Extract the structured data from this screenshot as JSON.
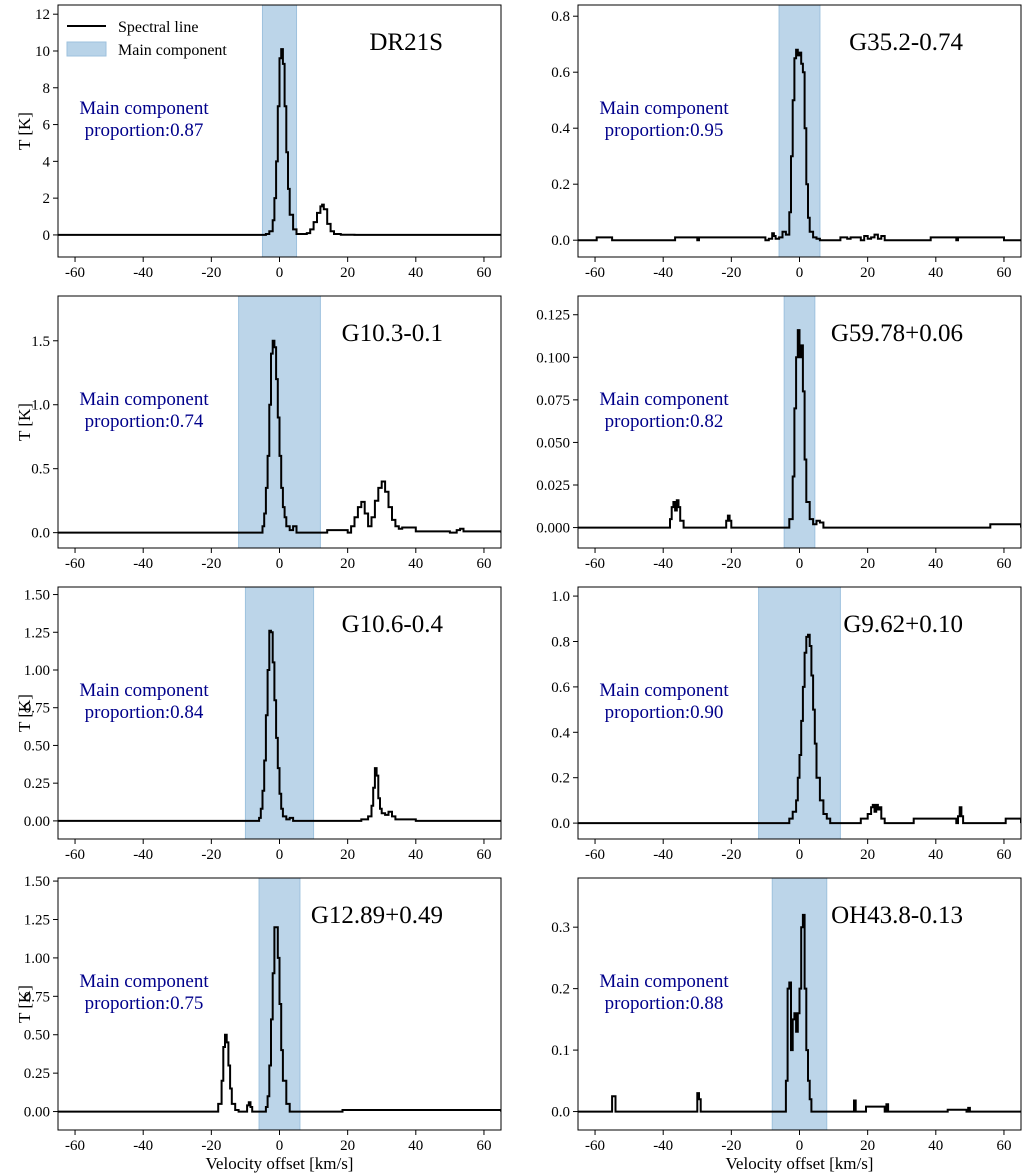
{
  "legend": {
    "line_label": "Spectral line",
    "band_label": "Main component",
    "line_color": "#000000",
    "band_color": "#b8d3e8"
  },
  "shared_xlabel": "Velocity offset [km/s]",
  "shared_ylabel": "T [K]",
  "chart_data": [
    {
      "type": "line",
      "title": "DR21S",
      "annotation_line1": "Main component",
      "annotation_line2": "proportion:0.87",
      "xlim": [
        -65,
        65
      ],
      "ylim": [
        -1.2,
        12.5
      ],
      "xticks": [
        -60,
        -40,
        -20,
        0,
        20,
        40,
        60
      ],
      "yticks": [
        0,
        2,
        4,
        6,
        8,
        10,
        12
      ],
      "ytick_labels": [
        "0",
        "2",
        "4",
        "6",
        "8",
        "10",
        "12"
      ],
      "band": [
        -5,
        5
      ],
      "series": [
        {
          "x": [
            -65,
            -10,
            -6,
            -4,
            -3,
            -2,
            -1.5,
            -1,
            -0.5,
            0,
            0.5,
            1,
            1.5,
            2,
            2.5,
            3,
            4,
            5,
            6,
            8,
            9,
            10,
            11,
            12,
            12.5,
            13,
            14,
            15,
            16,
            18,
            22,
            30,
            45,
            65
          ],
          "y": [
            0,
            0,
            0,
            0.05,
            0.2,
            0.8,
            2,
            4,
            7,
            9.6,
            10.1,
            9.3,
            7,
            4.5,
            2.5,
            1.1,
            0.3,
            0.05,
            0.05,
            0.1,
            0.3,
            0.7,
            1.2,
            1.55,
            1.65,
            1.4,
            0.6,
            0.2,
            0.05,
            0.01,
            0,
            0,
            0,
            0
          ]
        }
      ]
    },
    {
      "type": "line",
      "title": "G35.2-0.74",
      "annotation_line1": "Main component",
      "annotation_line2": "proportion:0.95",
      "xlim": [
        -65,
        65
      ],
      "ylim": [
        -0.06,
        0.84
      ],
      "xticks": [
        -60,
        -40,
        -20,
        0,
        20,
        40,
        60
      ],
      "yticks": [
        0,
        0.2,
        0.4,
        0.6,
        0.8
      ],
      "ytick_labels": [
        "0.0",
        "0.2",
        "0.4",
        "0.6",
        "0.8"
      ],
      "band": [
        -6,
        6
      ],
      "series": [
        {
          "x": [
            -65,
            -60,
            -59.5,
            -55,
            -37,
            -36.5,
            -30,
            -29.5,
            -10,
            -9,
            -8,
            -7.5,
            -7,
            -6,
            -5,
            -4,
            -3,
            -2.5,
            -2,
            -1.5,
            -1,
            -0.5,
            0,
            0.5,
            1,
            1.5,
            2,
            2.5,
            3,
            4,
            5,
            6,
            12,
            14,
            15,
            18,
            19,
            20,
            21,
            22,
            23,
            24,
            25,
            38,
            38.5,
            46,
            46.5,
            60,
            65
          ],
          "y": [
            0,
            0,
            0.01,
            0,
            0,
            0.01,
            0,
            0.01,
            0,
            0.005,
            0.025,
            0.015,
            0.005,
            0.01,
            0.03,
            0.02,
            0.1,
            0.3,
            0.5,
            0.65,
            0.68,
            0.66,
            0.67,
            0.63,
            0.6,
            0.4,
            0.2,
            0.08,
            0.03,
            0.01,
            0.005,
            0,
            0.01,
            0.005,
            0.01,
            0,
            0.015,
            0.005,
            0.01,
            0.02,
            0.005,
            0.015,
            0,
            0,
            0.01,
            0,
            0.01,
            0,
            0
          ]
        }
      ]
    },
    {
      "type": "line",
      "title": "G10.3-0.1",
      "annotation_line1": "Main component",
      "annotation_line2": "proportion:0.74",
      "xlim": [
        -65,
        65
      ],
      "ylim": [
        -0.12,
        1.85
      ],
      "xticks": [
        -60,
        -40,
        -20,
        0,
        20,
        40,
        60
      ],
      "yticks": [
        0,
        0.5,
        1,
        1.5
      ],
      "ytick_labels": [
        "0.0",
        "0.5",
        "1.0",
        "1.5"
      ],
      "band": [
        -12,
        12
      ],
      "series": [
        {
          "x": [
            -65,
            -6,
            -5,
            -4.5,
            -4,
            -3.5,
            -3,
            -2.5,
            -2,
            -1.5,
            -1,
            -0.5,
            0,
            0.5,
            1,
            1.5,
            2,
            3,
            4,
            5,
            10,
            14,
            20,
            21,
            22,
            23,
            24,
            25,
            26,
            27,
            28,
            29,
            30,
            31,
            32,
            33,
            34,
            35,
            36,
            40,
            50,
            52,
            53,
            54,
            65
          ],
          "y": [
            0,
            0,
            0.05,
            0.15,
            0.35,
            0.6,
            1.0,
            1.4,
            1.5,
            1.45,
            1.2,
            0.9,
            0.6,
            0.35,
            0.2,
            0.12,
            0.05,
            0.02,
            0.05,
            0,
            0,
            0.02,
            0,
            0.05,
            0.12,
            0.2,
            0.24,
            0.15,
            0.05,
            0.12,
            0.25,
            0.35,
            0.4,
            0.32,
            0.2,
            0.1,
            0.05,
            0.03,
            0.04,
            0.01,
            0,
            0.02,
            0.03,
            0.01,
            0
          ]
        }
      ]
    },
    {
      "type": "line",
      "title": "G59.78+0.06",
      "annotation_line1": "Main component",
      "annotation_line2": "proportion:0.82",
      "xlim": [
        -65,
        65
      ],
      "ylim": [
        -0.012,
        0.136
      ],
      "xticks": [
        -60,
        -40,
        -20,
        0,
        20,
        40,
        60
      ],
      "yticks": [
        0,
        0.025,
        0.05,
        0.075,
        0.1,
        0.125
      ],
      "ytick_labels": [
        "0.000",
        "0.025",
        "0.050",
        "0.075",
        "0.100",
        "0.125"
      ],
      "band": [
        -4.5,
        4.5
      ],
      "series": [
        {
          "x": [
            -65,
            -39,
            -38,
            -37.5,
            -37,
            -36.5,
            -36,
            -35.5,
            -35,
            -34,
            -22,
            -21.5,
            -21,
            -20.5,
            -20,
            -4,
            -3,
            -2,
            -1.5,
            -1,
            -0.5,
            0,
            0.5,
            1,
            1.5,
            2,
            3,
            4,
            5,
            6,
            7,
            55,
            56,
            65
          ],
          "y": [
            0,
            0,
            0.005,
            0.012,
            0.015,
            0.01,
            0.016,
            0.012,
            0.004,
            0,
            0,
            0.004,
            0.007,
            0.004,
            0,
            0,
            0.005,
            0.03,
            0.07,
            0.1,
            0.116,
            0.1,
            0.107,
            0.08,
            0.04,
            0.015,
            0.005,
            0.002,
            0.004,
            0.003,
            0,
            0,
            0.002,
            0
          ]
        }
      ]
    },
    {
      "type": "line",
      "title": "G10.6-0.4",
      "annotation_line1": "Main component",
      "annotation_line2": "proportion:0.84",
      "xlim": [
        -65,
        65
      ],
      "ylim": [
        -0.12,
        1.55
      ],
      "xticks": [
        -60,
        -40,
        -20,
        0,
        20,
        40,
        60
      ],
      "yticks": [
        0,
        0.25,
        0.5,
        0.75,
        1,
        1.25,
        1.5
      ],
      "ytick_labels": [
        "0.00",
        "0.25",
        "0.50",
        "0.75",
        "1.00",
        "1.25",
        "1.50"
      ],
      "band": [
        -10,
        10
      ],
      "series": [
        {
          "x": [
            -65,
            -8,
            -6,
            -5.5,
            -5,
            -4.5,
            -4,
            -3.5,
            -3,
            -2.5,
            -2,
            -1.5,
            -1,
            -0.5,
            0,
            0.5,
            1,
            2,
            3,
            4,
            20,
            24,
            26,
            27,
            27.5,
            28,
            28.5,
            29,
            29.5,
            30,
            31,
            32,
            33,
            34,
            40,
            65
          ],
          "y": [
            0,
            0,
            0.02,
            0.08,
            0.2,
            0.4,
            0.7,
            1.0,
            1.26,
            1.25,
            1.05,
            0.8,
            0.55,
            0.35,
            0.18,
            0.08,
            0.03,
            0.01,
            0.02,
            0,
            0,
            0.01,
            0.03,
            0.1,
            0.22,
            0.35,
            0.3,
            0.15,
            0.08,
            0.05,
            0.04,
            0.06,
            0.03,
            0.01,
            0,
            0
          ]
        }
      ]
    },
    {
      "type": "line",
      "title": "G9.62+0.10",
      "annotation_line1": "Main component",
      "annotation_line2": "proportion:0.90",
      "xlim": [
        -65,
        65
      ],
      "ylim": [
        -0.07,
        1.04
      ],
      "xticks": [
        -60,
        -40,
        -20,
        0,
        20,
        40,
        60
      ],
      "yticks": [
        0,
        0.2,
        0.4,
        0.6,
        0.8,
        1.0
      ],
      "ytick_labels": [
        "0.0",
        "0.2",
        "0.4",
        "0.6",
        "0.8",
        "1.0"
      ],
      "band": [
        -12,
        12
      ],
      "series": [
        {
          "x": [
            -65,
            -5,
            -3,
            -2,
            -1,
            -0.5,
            0,
            0.5,
            1,
            1.5,
            2,
            2.5,
            3,
            3.5,
            4,
            4.5,
            5,
            6,
            7,
            8,
            9,
            16,
            18,
            20,
            21,
            21.5,
            22,
            22.5,
            23,
            23.5,
            24,
            25,
            33,
            33.5,
            46,
            46.5,
            47,
            47.5,
            48,
            60,
            60.5,
            65
          ],
          "y": [
            0,
            0,
            0.02,
            0.05,
            0.1,
            0.2,
            0.3,
            0.45,
            0.6,
            0.75,
            0.82,
            0.83,
            0.78,
            0.65,
            0.5,
            0.35,
            0.2,
            0.1,
            0.04,
            0.02,
            0,
            0,
            0.02,
            0.04,
            0.07,
            0.08,
            0.05,
            0.08,
            0.06,
            0.07,
            0.02,
            0,
            0,
            0.02,
            0,
            0.03,
            0.07,
            0.03,
            0,
            0,
            0.02,
            0
          ]
        }
      ]
    },
    {
      "type": "line",
      "title": "G12.89+0.49",
      "annotation_line1": "Main component",
      "annotation_line2": "proportion:0.75",
      "xlim": [
        -65,
        65
      ],
      "ylim": [
        -0.12,
        1.52
      ],
      "xticks": [
        -60,
        -40,
        -20,
        0,
        20,
        40,
        60
      ],
      "yticks": [
        0,
        0.25,
        0.5,
        0.75,
        1,
        1.25,
        1.5
      ],
      "ytick_labels": [
        "0.00",
        "0.25",
        "0.50",
        "0.75",
        "1.00",
        "1.25",
        "1.50"
      ],
      "band": [
        -6,
        6
      ],
      "series": [
        {
          "x": [
            -65,
            -19,
            -18,
            -17,
            -16.5,
            -16,
            -15.5,
            -15,
            -14.5,
            -14,
            -13,
            -12,
            -10,
            -9.5,
            -9,
            -8.5,
            -8,
            -5,
            -4,
            -3.5,
            -3,
            -2.5,
            -2,
            -1.5,
            -1,
            -0.5,
            0,
            0.5,
            1,
            2,
            3,
            18,
            18.5,
            65
          ],
          "y": [
            0,
            0,
            0.05,
            0.2,
            0.42,
            0.5,
            0.45,
            0.3,
            0.15,
            0.05,
            0.01,
            0,
            0,
            0.04,
            0.06,
            0.03,
            0,
            0,
            0.03,
            0.1,
            0.3,
            0.6,
            0.9,
            1.2,
            1.2,
            1.0,
            0.7,
            0.4,
            0.2,
            0.05,
            0,
            0,
            0.01,
            0
          ]
        }
      ]
    },
    {
      "type": "line",
      "title": "OH43.8-0.13",
      "annotation_line1": "Main component",
      "annotation_line2": "proportion:0.88",
      "xlim": [
        -65,
        65
      ],
      "ylim": [
        -0.03,
        0.38
      ],
      "xticks": [
        -60,
        -40,
        -20,
        0,
        20,
        40,
        60
      ],
      "yticks": [
        0,
        0.1,
        0.2,
        0.3
      ],
      "ytick_labels": [
        "0.0",
        "0.1",
        "0.2",
        "0.3"
      ],
      "band": [
        -8,
        8
      ],
      "series": [
        {
          "x": [
            -65,
            -55.5,
            -55,
            -54.5,
            -54,
            -30.5,
            -30,
            -29.5,
            -29,
            -4.5,
            -4,
            -3.5,
            -3,
            -2.5,
            -2,
            -1.5,
            -1,
            -0.5,
            0,
            0.5,
            1,
            1.5,
            2,
            2.5,
            3,
            3.5,
            15.5,
            16,
            16.5,
            19,
            19.5,
            25,
            25.5,
            26,
            43,
            43.5,
            49,
            49.5,
            50,
            65
          ],
          "y": [
            0,
            0,
            0.025,
            0.025,
            0,
            0,
            0.03,
            0.02,
            0,
            0,
            0.05,
            0.2,
            0.21,
            0.1,
            0.15,
            0.16,
            0.13,
            0.16,
            0.2,
            0.3,
            0.32,
            0.2,
            0.1,
            0.05,
            0.02,
            0,
            0,
            0.018,
            0,
            0,
            0.008,
            0,
            0.012,
            0,
            0,
            0.003,
            0,
            0.006,
            0,
            0
          ]
        }
      ]
    }
  ]
}
